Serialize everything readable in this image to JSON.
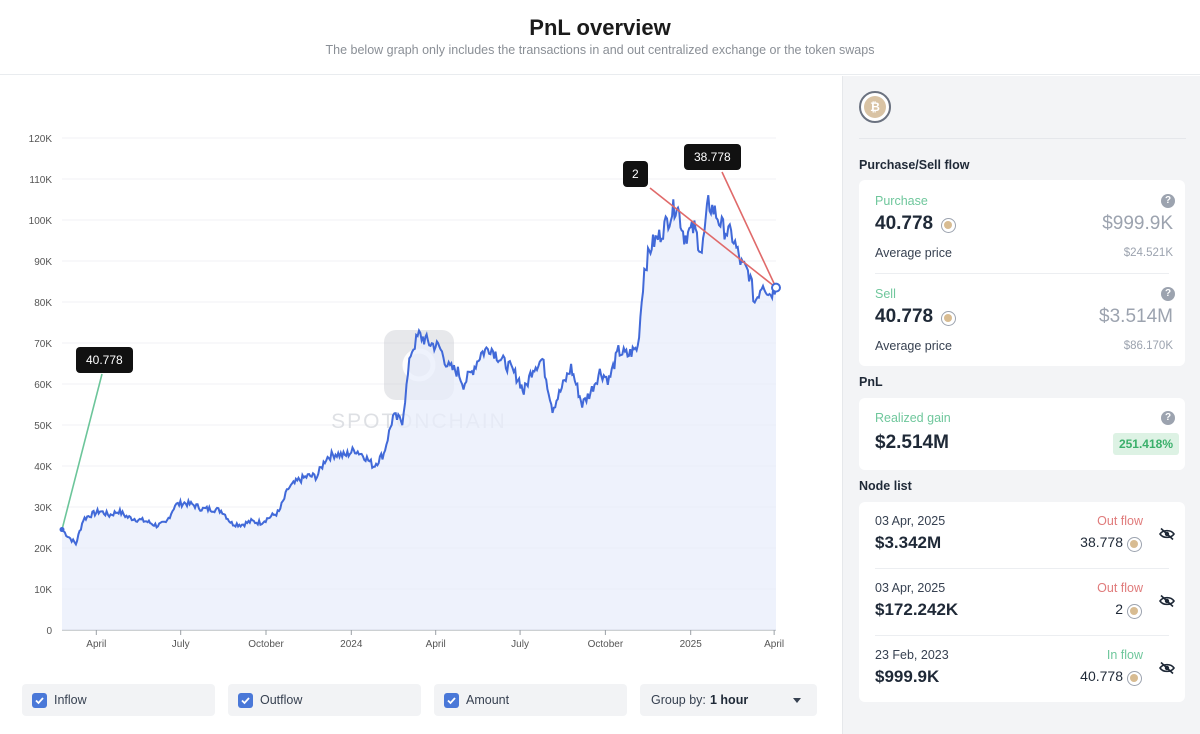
{
  "header": {
    "title": "PnL overview",
    "subtitle": "The below graph only includes the transactions in and out centralized exchange or the token swaps"
  },
  "watermark_text": "SPOTONCHAIN",
  "tooltips": {
    "inflow": "40.778",
    "outflow_small": "2",
    "outflow_large": "38.778"
  },
  "toolbar": {
    "inflow_label": "Inflow",
    "outflow_label": "Outflow",
    "amount_label": "Amount",
    "group_prefix": "Group by:",
    "group_value": "1 hour"
  },
  "sidebar": {
    "flow_title": "Purchase/Sell flow",
    "purchase": {
      "label": "Purchase",
      "amount": "40.778",
      "usd": "$999.9K",
      "avg_label": "Average price",
      "avg_value": "$24.521K"
    },
    "sell": {
      "label": "Sell",
      "amount": "40.778",
      "usd": "$3.514M",
      "avg_label": "Average price",
      "avg_value": "$86.170K"
    },
    "pnl_title": "PnL",
    "pnl": {
      "label": "Realized gain",
      "value": "$2.514M",
      "pct": "251.418%"
    },
    "node_title": "Node list",
    "nodes": [
      {
        "date": "03 Apr, 2025",
        "usd": "$3.342M",
        "flow": "Out flow",
        "amount": "38.778"
      },
      {
        "date": "03 Apr, 2025",
        "usd": "$172.242K",
        "flow": "Out flow",
        "amount": "2"
      },
      {
        "date": "23 Feb, 2023",
        "usd": "$999.9K",
        "flow": "In flow",
        "amount": "40.778"
      }
    ]
  },
  "colors": {
    "line": "#4169d8",
    "inflow_marker": "#6cc59a",
    "outflow_marker": "#e06a6a",
    "accent": "#4a78d8"
  },
  "chart_data": {
    "type": "line",
    "title": "",
    "xlabel": "",
    "ylabel": "",
    "ylim": [
      0,
      120000
    ],
    "yticks": [
      0,
      10000,
      20000,
      30000,
      40000,
      50000,
      60000,
      70000,
      80000,
      90000,
      100000,
      110000,
      120000
    ],
    "ytick_labels": [
      "0",
      "10K",
      "20K",
      "30K",
      "40K",
      "50K",
      "60K",
      "70K",
      "80K",
      "90K",
      "100K",
      "110K",
      "120K"
    ],
    "xtick_labels": [
      "April",
      "July",
      "October",
      "2024",
      "April",
      "July",
      "October",
      "2025",
      "April"
    ],
    "xlim": [
      "2023-02-23",
      "2025-04-03"
    ],
    "xticks": [
      "2023-04-01",
      "2023-07-01",
      "2023-10-01",
      "2024-01-01",
      "2024-04-01",
      "2024-07-01",
      "2024-10-01",
      "2025-01-01",
      "2025-04-01"
    ],
    "series": [
      {
        "x": [
          "2023-02-23",
          "2023-03-01",
          "2023-03-10",
          "2023-03-18",
          "2023-03-25",
          "2023-04-05",
          "2023-04-15",
          "2023-04-25",
          "2023-05-05",
          "2023-05-15",
          "2023-05-25",
          "2023-06-05",
          "2023-06-15",
          "2023-06-25",
          "2023-07-05",
          "2023-07-15",
          "2023-07-25",
          "2023-08-05",
          "2023-08-15",
          "2023-08-25",
          "2023-09-05",
          "2023-09-15",
          "2023-09-25",
          "2023-10-05",
          "2023-10-15",
          "2023-10-25",
          "2023-11-05",
          "2023-11-15",
          "2023-11-25",
          "2023-12-05",
          "2023-12-15",
          "2023-12-25",
          "2024-01-05",
          "2024-01-15",
          "2024-01-25",
          "2024-02-05",
          "2024-02-15",
          "2024-02-25",
          "2024-03-05",
          "2024-03-14",
          "2024-03-25",
          "2024-04-05",
          "2024-04-15",
          "2024-04-25",
          "2024-05-01",
          "2024-05-10",
          "2024-05-20",
          "2024-05-30",
          "2024-06-10",
          "2024-06-20",
          "2024-06-30",
          "2024-07-05",
          "2024-07-15",
          "2024-07-25",
          "2024-08-05",
          "2024-08-15",
          "2024-08-25",
          "2024-09-06",
          "2024-09-15",
          "2024-09-25",
          "2024-10-05",
          "2024-10-15",
          "2024-10-25",
          "2024-11-05",
          "2024-11-12",
          "2024-11-20",
          "2024-11-28",
          "2024-12-05",
          "2024-12-12",
          "2024-12-17",
          "2024-12-25",
          "2025-01-05",
          "2025-01-13",
          "2025-01-20",
          "2025-01-27",
          "2025-02-05",
          "2025-02-15",
          "2025-02-25",
          "2025-03-05",
          "2025-03-11",
          "2025-03-20",
          "2025-03-27",
          "2025-04-03"
        ],
        "values": [
          24500,
          23000,
          21000,
          27000,
          28000,
          29000,
          28000,
          29000,
          27500,
          27000,
          26500,
          25500,
          26000,
          30500,
          31000,
          30500,
          29500,
          29500,
          29000,
          26000,
          25700,
          26500,
          26200,
          27500,
          28800,
          34500,
          36500,
          37500,
          37500,
          42000,
          43000,
          42500,
          44000,
          42500,
          40000,
          43000,
          52000,
          51000,
          67500,
          72000,
          70000,
          69000,
          64000,
          63000,
          60000,
          63000,
          67500,
          69000,
          66000,
          64000,
          61000,
          58000,
          64000,
          66000,
          54000,
          59000,
          64000,
          55000,
          58000,
          63000,
          61000,
          68000,
          67000,
          69000,
          88000,
          94000,
          96000,
          99000,
          102000,
          104000,
          96000,
          98000,
          92000,
          104000,
          102000,
          98000,
          96000,
          89000,
          87000,
          80000,
          85000,
          82000,
          83500
        ]
      }
    ],
    "markers": [
      {
        "type": "inflow",
        "x": "2023-02-23",
        "y": 24500,
        "label": "40.778"
      },
      {
        "type": "outflow",
        "x": "2025-04-03",
        "y": 83500,
        "label": "2"
      },
      {
        "type": "outflow",
        "x": "2025-04-03",
        "y": 83500,
        "label": "38.778"
      }
    ]
  }
}
